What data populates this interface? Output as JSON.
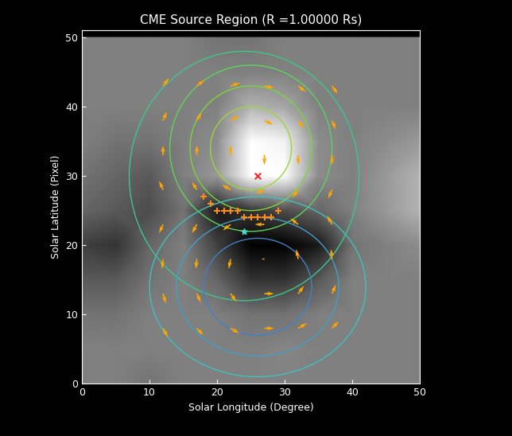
{
  "chart_data": {
    "type": "vector_field",
    "title": "CME Source Region (R =1.00000 Rs)",
    "x_label": "Solar Longitude (Degree)",
    "y_label": "Solar Latitude (Pixel)",
    "xlim": [
      0,
      50
    ],
    "ylim": [
      0,
      51
    ],
    "xticks": [
      0,
      10,
      20,
      30,
      40,
      50
    ],
    "yticks": [
      0,
      10,
      20,
      30,
      40,
      50
    ],
    "grid": false,
    "magnetogram": {
      "x": [
        0,
        5,
        10,
        15,
        20,
        25,
        30,
        35,
        40,
        45,
        50
      ],
      "y": [
        0,
        5,
        10,
        15,
        20,
        25,
        30,
        35,
        40,
        45,
        50
      ],
      "range": [
        -1,
        1
      ],
      "values": [
        [
          0,
          0,
          -0.1,
          0,
          0,
          0,
          0,
          0,
          0,
          0,
          0
        ],
        [
          0,
          0,
          0,
          0,
          0,
          0,
          0.05,
          0,
          0,
          0,
          0
        ],
        [
          -0.1,
          -0.1,
          0,
          0,
          0,
          -0.1,
          -0.1,
          0,
          0,
          0,
          0
        ],
        [
          -0.3,
          -0.3,
          -0.1,
          0,
          -0.2,
          -0.6,
          -0.6,
          -0.3,
          0,
          0,
          0
        ],
        [
          -0.5,
          -0.6,
          -0.2,
          0,
          -0.5,
          -1,
          -1,
          -0.8,
          -0.1,
          0,
          0.1
        ],
        [
          -0.2,
          -0.3,
          -0.4,
          -0.1,
          -0.8,
          -0.6,
          -0.4,
          -0.2,
          0,
          0.2,
          0.4
        ],
        [
          -0.1,
          -0.2,
          -0.3,
          0,
          0.2,
          1,
          1,
          0.1,
          0,
          0.2,
          0.4
        ],
        [
          0,
          -0.1,
          -0.1,
          0,
          0.1,
          1,
          0.9,
          0.1,
          0,
          0.1,
          0.2
        ],
        [
          0,
          0,
          0,
          0,
          0,
          0.4,
          0.3,
          0,
          0,
          0,
          0
        ],
        [
          0,
          0,
          0,
          0,
          0,
          0,
          0,
          0,
          0,
          0,
          0
        ],
        [
          0,
          0,
          0,
          0,
          -0.1,
          -0.1,
          0,
          0,
          0,
          0,
          0
        ]
      ]
    },
    "contours": [
      {
        "center": [
          24,
          30
        ],
        "radii": [
          17,
          18
        ],
        "color": "#3cc88c"
      },
      {
        "center": [
          25,
          34
        ],
        "radii": [
          12,
          12
        ],
        "color": "#5cd45c"
      },
      {
        "center": [
          25,
          34
        ],
        "radii": [
          9,
          9
        ],
        "color": "#7cd43c"
      },
      {
        "center": [
          25,
          34
        ],
        "radii": [
          6,
          6
        ],
        "color": "#9cd43c"
      },
      {
        "center": [
          26,
          14
        ],
        "radii": [
          16,
          13
        ],
        "color": "#40c0c0"
      },
      {
        "center": [
          26,
          14
        ],
        "radii": [
          12,
          10
        ],
        "color": "#40a0c8"
      },
      {
        "center": [
          26,
          14
        ],
        "radii": [
          8,
          7
        ],
        "color": "#4080c8"
      }
    ],
    "vectors": {
      "color": "#ffa500",
      "x": [
        12,
        17,
        22,
        27,
        32,
        37,
        12,
        17,
        22,
        27,
        32,
        37,
        12,
        17,
        22,
        27,
        32,
        37,
        12,
        17,
        22,
        27,
        32,
        37,
        12,
        17,
        22,
        27,
        32,
        37,
        12,
        17,
        22,
        27,
        32,
        37,
        12,
        17,
        22,
        27,
        32,
        37,
        12,
        17,
        22,
        27,
        32,
        37
      ],
      "y": [
        43,
        43,
        43,
        43,
        43,
        43,
        38,
        38,
        38,
        38,
        38,
        38,
        33,
        33,
        33,
        33,
        33,
        33,
        28,
        28,
        28,
        28,
        28,
        28,
        23,
        23,
        23,
        23,
        23,
        23,
        18,
        18,
        18,
        18,
        18,
        18,
        13,
        13,
        13,
        13,
        13,
        13,
        8,
        8,
        8,
        8,
        8,
        8
      ],
      "u": [
        0.6,
        0.8,
        1.0,
        1.0,
        0.8,
        0.6,
        0.4,
        0.5,
        0.9,
        0.9,
        0.6,
        0.4,
        0,
        0,
        0,
        0,
        0,
        0,
        -0.4,
        -0.5,
        -0.9,
        -0.9,
        -0.6,
        -0.4,
        -0.4,
        -0.5,
        -0.8,
        -1,
        -0.8,
        -0.5,
        -0.1,
        -0.1,
        -0.2,
        -0.3,
        -0.2,
        -0.1,
        0.3,
        0.4,
        0.6,
        1,
        0.6,
        0.4,
        0.5,
        0.7,
        0.9,
        1,
        0.9,
        0.7
      ],
      "v": [
        0.8,
        0.6,
        0.3,
        -0.2,
        -0.6,
        -0.8,
        0.9,
        0.8,
        0.5,
        -0.4,
        -0.8,
        -0.9,
        1,
        1,
        1,
        -1,
        -1,
        -1,
        0.9,
        0.8,
        0.5,
        -0.4,
        -0.8,
        -0.9,
        -0.9,
        -0.9,
        -0.6,
        0,
        0.6,
        0.9,
        -1,
        -1,
        -1,
        0,
        1,
        1,
        -1,
        -0.9,
        -0.8,
        0,
        0.8,
        0.9,
        -0.9,
        -0.7,
        -0.5,
        0,
        0.5,
        0.7
      ]
    },
    "markers": [
      {
        "x": [
          18,
          19,
          20,
          21,
          22,
          23,
          24,
          25,
          26,
          27,
          28,
          29
        ],
        "y": [
          27,
          26,
          25,
          25,
          25,
          25,
          24,
          24,
          24,
          24,
          24,
          25
        ],
        "color": "#ff8c1a",
        "marker": "plus"
      },
      {
        "x": [
          26
        ],
        "y": [
          30
        ],
        "color": "#ff2020",
        "marker": "x"
      },
      {
        "x": [
          24
        ],
        "y": [
          22
        ],
        "color": "#40e0d0",
        "marker": "star"
      }
    ]
  }
}
